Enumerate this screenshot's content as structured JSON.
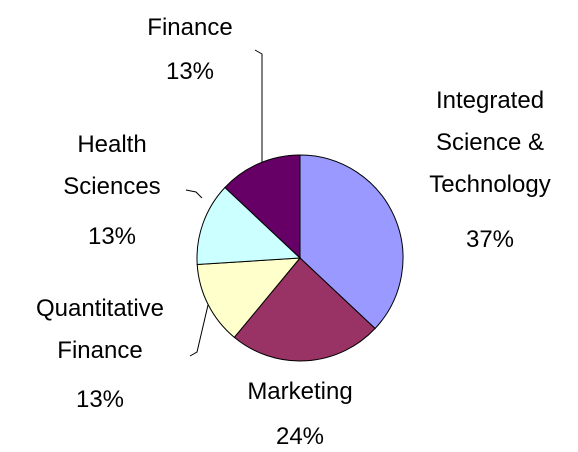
{
  "chart_data": {
    "type": "pie",
    "categories": [
      "Integrated Science & Technology",
      "Marketing",
      "Quantitative Finance",
      "Health Sciences",
      "Finance"
    ],
    "values": [
      37,
      24,
      13,
      13,
      13
    ],
    "value_labels": [
      "37%",
      "24%",
      "13%",
      "13%",
      "13%"
    ],
    "colors": [
      "#9999ff",
      "#993366",
      "#ffffcc",
      "#ccffff",
      "#660066"
    ]
  }
}
